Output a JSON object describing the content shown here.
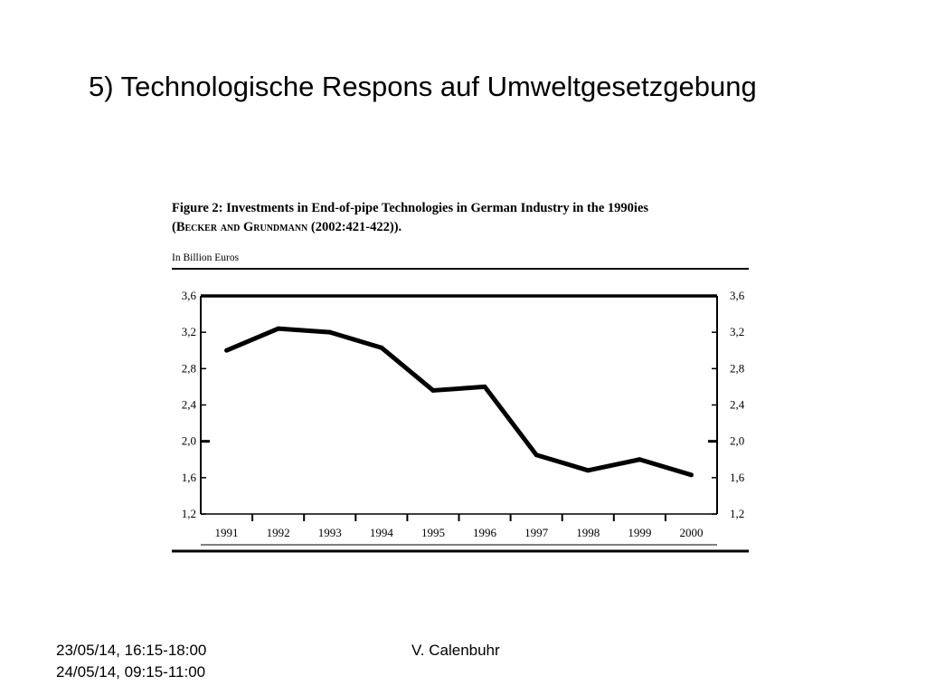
{
  "slide": {
    "title": "5) Technologische Respons auf Umweltgesetzgebung",
    "footer_dates": [
      "23/05/14, 16:15-18:00",
      "24/05/14, 09:15-11:00"
    ],
    "footer_author": "V. Calenbuhr"
  },
  "chart_data": {
    "type": "line",
    "title_line1": "Figure 2: Investments in End-of-pipe Technologies in German Industry in the 1990ies",
    "title_line2_pre": "(",
    "title_line2_sc": "Becker and Grundmann",
    "title_line2_post": " (2002:421-422)).",
    "unit_label": "In Billion Euros",
    "categories": [
      "1991",
      "1992",
      "1993",
      "1994",
      "1995",
      "1996",
      "1997",
      "1998",
      "1999",
      "2000"
    ],
    "values": [
      3.0,
      3.24,
      3.2,
      3.03,
      2.56,
      2.6,
      1.85,
      1.68,
      1.8,
      1.63
    ],
    "ylim": [
      1.2,
      3.6
    ],
    "yticks": [
      "1,2",
      "1,6",
      "2,0",
      "2,4",
      "2,8",
      "3,2",
      "3,6"
    ],
    "ytick_values": [
      1.2,
      1.6,
      2.0,
      2.4,
      2.8,
      3.2,
      3.6
    ],
    "grid": false,
    "line_color": "#000000"
  }
}
